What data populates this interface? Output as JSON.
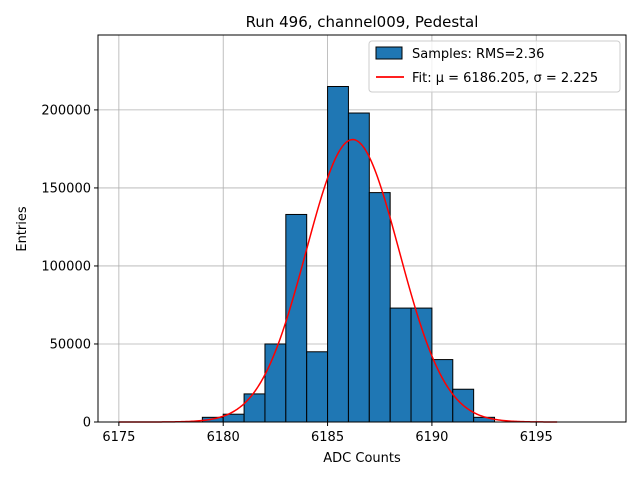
{
  "chart_data": {
    "type": "bar",
    "title": "Run 496, channel009, Pedestal",
    "xlabel": "ADC Counts",
    "ylabel": "Entries",
    "xlim": [
      6174,
      6199.3
    ],
    "ylim": [
      0,
      248000
    ],
    "xticks": [
      6175,
      6180,
      6185,
      6190,
      6195
    ],
    "yticks": [
      0,
      50000,
      100000,
      150000,
      200000
    ],
    "grid": true,
    "bin_width": 1,
    "bins": [
      {
        "left": 6179,
        "value": 3000
      },
      {
        "left": 6180,
        "value": 5000
      },
      {
        "left": 6181,
        "value": 18000
      },
      {
        "left": 6182,
        "value": 50000
      },
      {
        "left": 6183,
        "value": 133000
      },
      {
        "left": 6184,
        "value": 45000
      },
      {
        "left": 6185,
        "value": 215000
      },
      {
        "left": 6186,
        "value": 198000
      },
      {
        "left": 6187,
        "value": 147000
      },
      {
        "left": 6188,
        "value": 73000
      },
      {
        "left": 6189,
        "value": 73000
      },
      {
        "left": 6190,
        "value": 40000
      },
      {
        "left": 6191,
        "value": 21000
      },
      {
        "left": 6192,
        "value": 3000
      }
    ],
    "bar_color": "#1f77b4",
    "fit": {
      "type": "gaussian",
      "mu": 6186.205,
      "sigma": 2.225,
      "amplitude": 181000,
      "x_range": [
        6175,
        6196
      ],
      "color": "#ff0000"
    },
    "legend": {
      "position": "top-right",
      "entries": [
        {
          "label": "Samples: RMS=2.36",
          "kind": "patch"
        },
        {
          "label": "Fit: μ = 6186.205, σ = 2.225",
          "kind": "line"
        }
      ]
    }
  }
}
